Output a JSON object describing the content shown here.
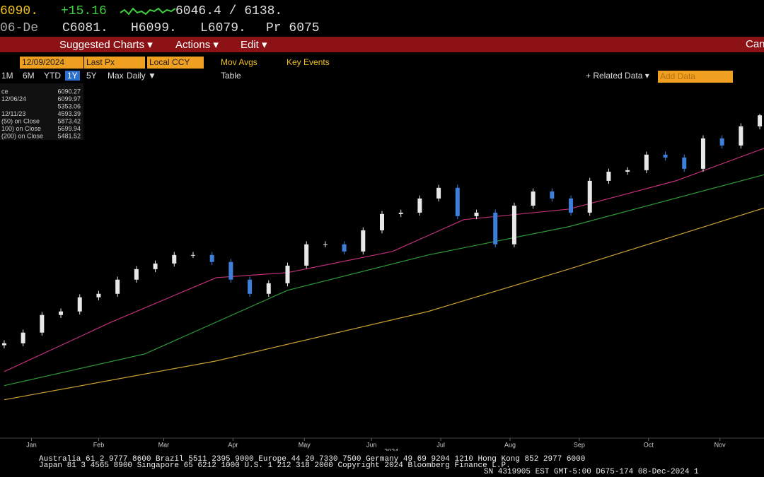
{
  "header": {
    "last": "6090.",
    "change": "+15.16",
    "range": "6046.4 / 6138.",
    "date": "06-De",
    "open": "C6081.",
    "high": "H6099.",
    "low": "L6079.",
    "prev": "Pr 6075"
  },
  "menu": {
    "suggested": "Suggested Charts ▾",
    "actions": "Actions ▾",
    "edit": "Edit ▾",
    "cancel": "Can"
  },
  "toolbar": {
    "date": "12/09/2024",
    "field": "Last Px",
    "currency": "Local CCY",
    "mov_avgs": "Mov Avgs",
    "key_events": "Key Events"
  },
  "periods": [
    "1M",
    "6M",
    "YTD",
    "1Y",
    "5Y",
    "Max"
  ],
  "frequency": "Daily ▼",
  "table": "Table",
  "related": "+ Related Data ▾",
  "add_data": "Add Data",
  "chart_data": {
    "type": "candlestick",
    "x": [
      0,
      9,
      18,
      27,
      36,
      45,
      54,
      63,
      72,
      81,
      90,
      99,
      108,
      117,
      126,
      135,
      144,
      153,
      162,
      171,
      180,
      189,
      198,
      207,
      216,
      225,
      234,
      243,
      252,
      261,
      270,
      279,
      288,
      297,
      306,
      315,
      324,
      333,
      342,
      351,
      360
    ],
    "open": [
      4580,
      4593,
      4663,
      4779,
      4802,
      4895,
      4918,
      5011,
      5080,
      5117,
      5173,
      5173,
      5127,
      5011,
      4918,
      4987,
      5103,
      5243,
      5243,
      5196,
      5335,
      5442,
      5451,
      5544,
      5614,
      5428,
      5451,
      5243,
      5497,
      5590,
      5544,
      5451,
      5660,
      5720,
      5730,
      5832,
      5813,
      5739,
      5939,
      5892,
      6018
    ],
    "high": [
      4613,
      4683,
      4799,
      4822,
      4915,
      4938,
      5031,
      5100,
      5137,
      5193,
      5193,
      5193,
      5147,
      5031,
      5007,
      5123,
      5263,
      5263,
      5263,
      5355,
      5462,
      5471,
      5564,
      5634,
      5634,
      5471,
      5471,
      5517,
      5610,
      5610,
      5564,
      5680,
      5740,
      5750,
      5852,
      5852,
      5833,
      5959,
      5959,
      6038,
      6099.97
    ],
    "low": [
      4560,
      4573,
      4643,
      4759,
      4782,
      4875,
      4898,
      4991,
      5060,
      5097,
      5153,
      5107,
      4991,
      4898,
      4898,
      4967,
      5083,
      5223,
      5176,
      5176,
      5315,
      5422,
      5431,
      5524,
      5408,
      5408,
      5223,
      5223,
      5477,
      5524,
      5431,
      5431,
      5640,
      5700,
      5710,
      5793,
      5719,
      5719,
      5872,
      5872,
      5998
    ],
    "close": [
      4593.39,
      4663,
      4779,
      4802,
      4895,
      4918,
      5011,
      5080,
      5117,
      5173,
      5173,
      5127,
      5011,
      4918,
      4987,
      5103,
      5243,
      5243,
      5196,
      5335,
      5442,
      5451,
      5544,
      5614,
      5428,
      5451,
      5243,
      5497,
      5590,
      5544,
      5451,
      5660,
      5720,
      5730,
      5832,
      5813,
      5739,
      5939,
      5892,
      6018,
      6090.27
    ],
    "up_color": "#e8e8e8",
    "down_color": "#3d7fd9",
    "moving_averages": [
      {
        "color": "#c0307a",
        "x": [
          0,
          51,
          101,
          135,
          185,
          219,
          269,
          320,
          362
        ],
        "values": [
          4407,
          4732,
          5024,
          5057,
          5196,
          5405,
          5474,
          5660,
          5873.42
        ]
      },
      {
        "color": "#2f9a3a",
        "x": [
          0,
          67,
          135,
          202,
          269,
          362
        ],
        "values": [
          4315,
          4523,
          4941,
          5173,
          5359,
          5699.94
        ]
      },
      {
        "color": "#c9a030",
        "x": [
          0,
          101,
          202,
          269,
          362
        ],
        "values": [
          4222,
          4477,
          4802,
          5080,
          5481.52
        ]
      }
    ],
    "xlim": [
      -2,
      362
    ],
    "ylim": [
      3970,
      6300
    ],
    "xticks": [
      {
        "value": 13,
        "label": "Jan"
      },
      {
        "value": 45,
        "label": "Feb"
      },
      {
        "value": 76,
        "label": "Mar"
      },
      {
        "value": 109,
        "label": "Apr"
      },
      {
        "value": 143,
        "label": "May"
      },
      {
        "value": 175,
        "label": "Jun"
      },
      {
        "value": 208,
        "label": "Jul"
      },
      {
        "value": 241,
        "label": "Aug"
      },
      {
        "value": 274,
        "label": "Sep"
      },
      {
        "value": 307,
        "label": "Oct"
      },
      {
        "value": 341,
        "label": "Nov"
      }
    ],
    "year_label": "2024",
    "legend": [
      {
        "label": "ce",
        "value": "6090.27"
      },
      {
        "label": "12/06/24",
        "value": "6099.97"
      },
      {
        "label": "",
        "value": "5353.06"
      },
      {
        "label": "12/11/23",
        "value": "4593.39"
      },
      {
        "label": "(50) on Close",
        "value": "5873.42"
      },
      {
        "label": "100) on Close",
        "value": "5699.94"
      },
      {
        "label": "(200) on Close",
        "value": "5481.52"
      }
    ]
  },
  "footer": {
    "line1": "Australia 61 2 9777 8600 Brazil 5511 2395 9000 Europe 44 20 7330 7500 Germany 49 69 9204 1210 Hong Kong 852 2977 6000",
    "line2": "Japan 81 3 4565 8900 Singapore 65 6212 1000 U.S. 1 212 318 2000 Copyright 2024 Bloomberg Finance L.P.",
    "line3": "SN 4319905 EST GMT-5:00 D675-174 08-Dec-2024 1"
  }
}
